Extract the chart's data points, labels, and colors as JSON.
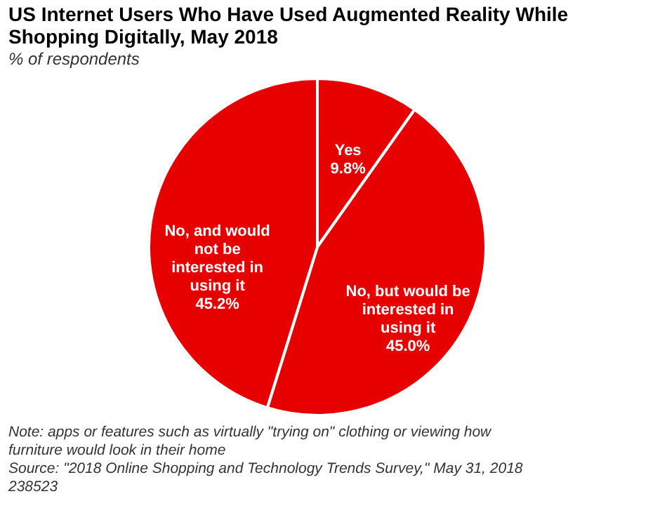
{
  "chart_data": {
    "type": "pie",
    "title": "US Internet Users Who Have Used Augmented Reality While Shopping Digitally, May 2018",
    "subtitle": "% of respondents",
    "categories": [
      "Yes",
      "No, but would be interested in using it",
      "No, and would not be interested in using it"
    ],
    "values": [
      9.8,
      45.0,
      45.2
    ],
    "value_labels": [
      "9.8%",
      "45.0%",
      "45.2%"
    ],
    "colors": [
      "#e60000",
      "#e60000",
      "#e60000"
    ],
    "legend": false,
    "annotations": [
      "Note: apps or features such as virtually \"trying on\" clothing or viewing how furniture would look in their home",
      "Source: \"2018 Online Shopping and Technology Trends Survey,\" May 31, 2018",
      "238523"
    ]
  }
}
